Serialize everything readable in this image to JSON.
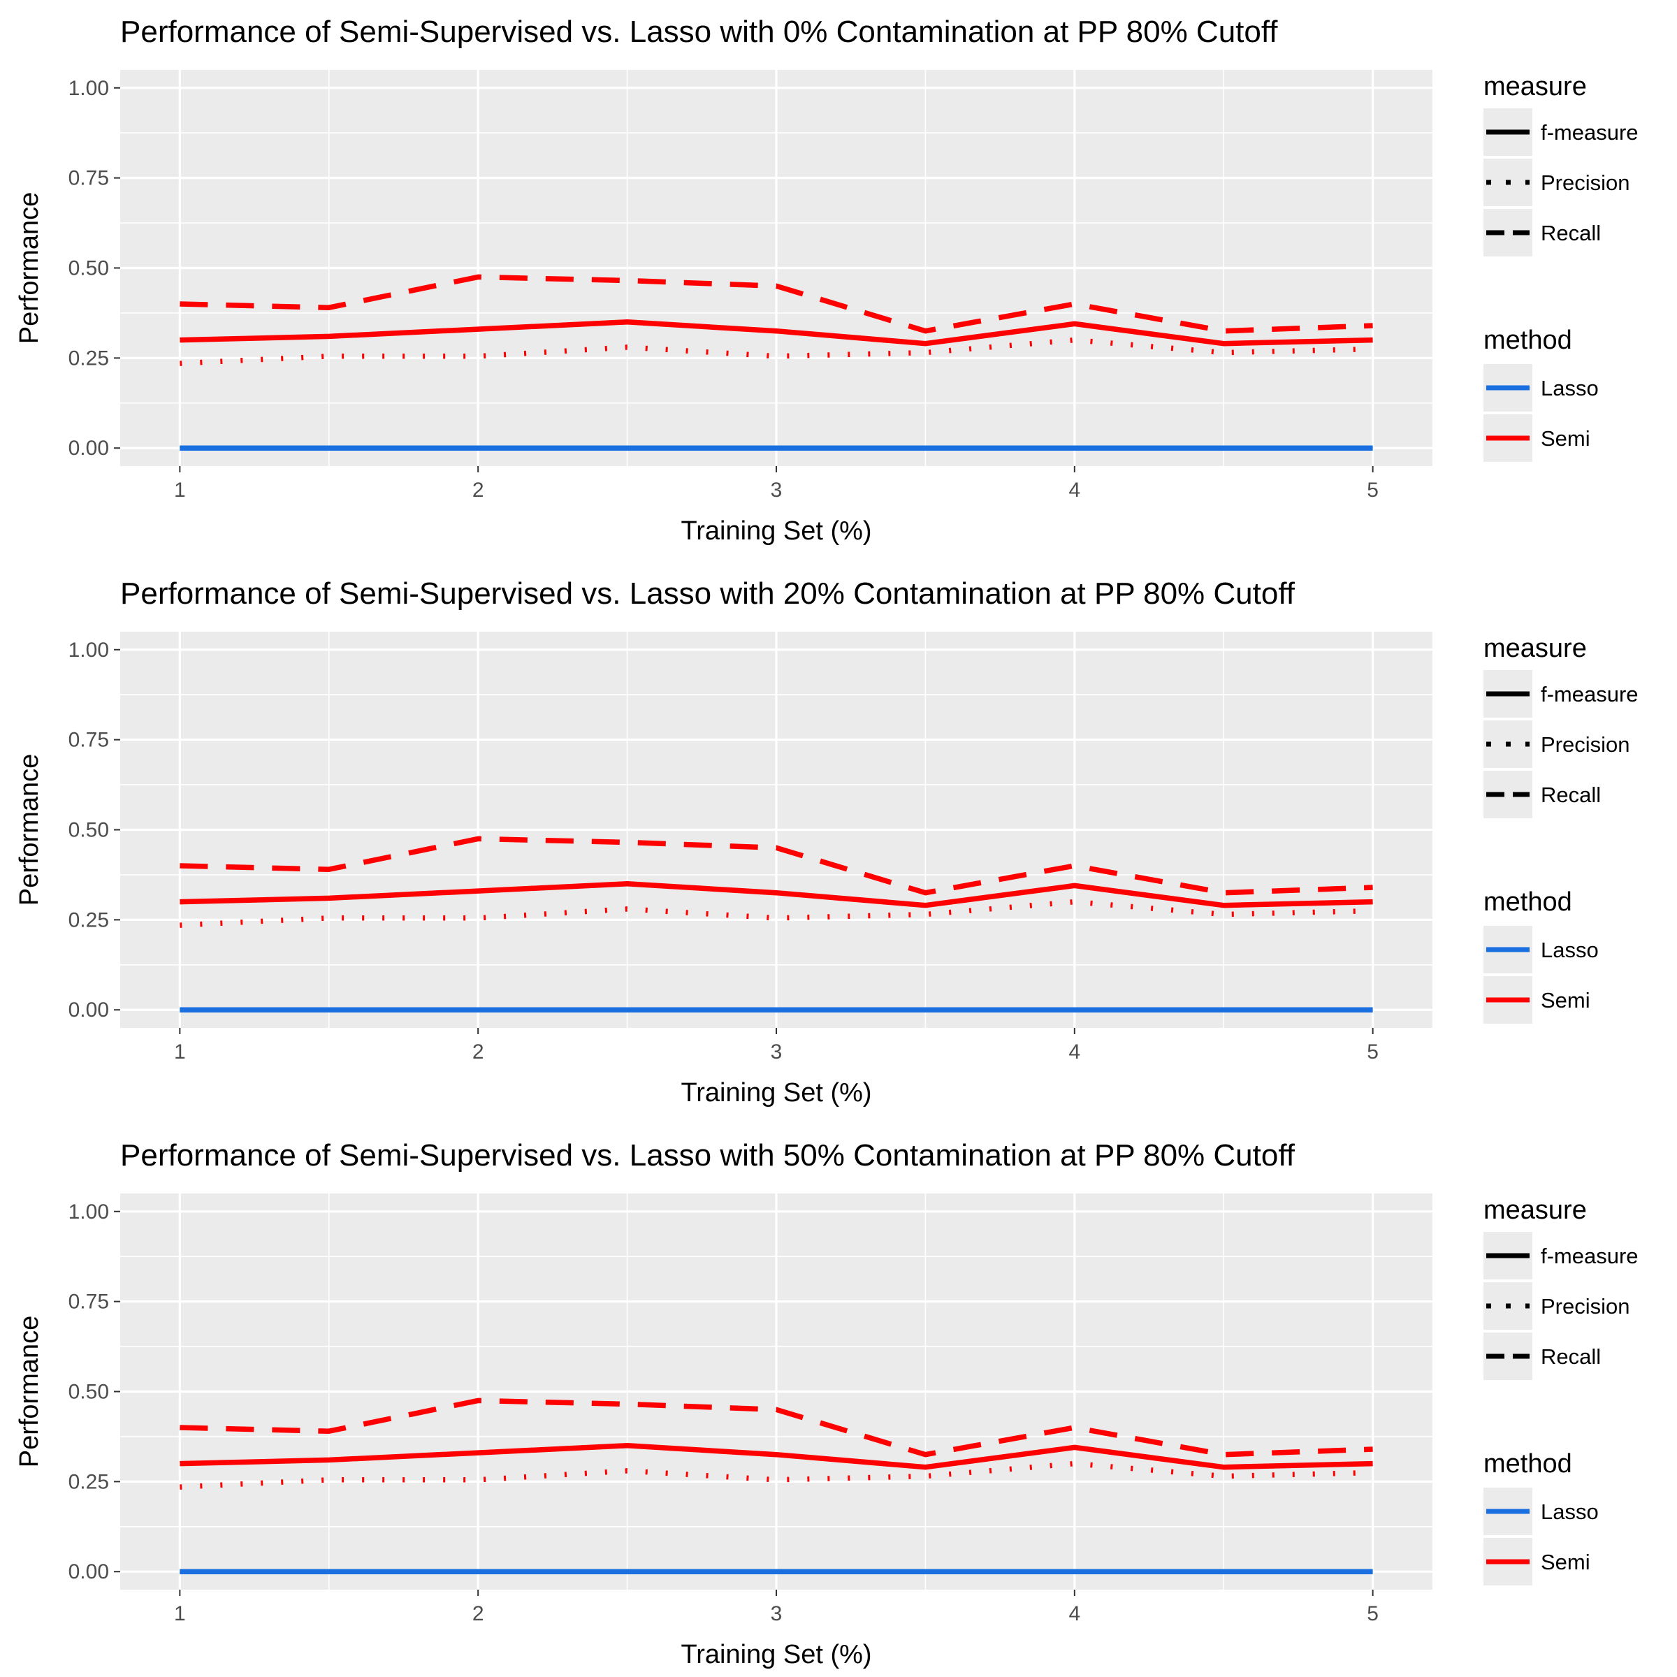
{
  "chart_data": [
    {
      "type": "line",
      "title": "Performance of Semi-Supervised vs. Lasso with 0% Contamination at PP 80% Cutoff",
      "xlabel": "Training Set (%)",
      "ylabel": "Performance",
      "xlim": [
        0.8,
        5.2
      ],
      "ylim": [
        -0.05,
        1.05
      ],
      "x_ticks": [
        "1",
        "2",
        "3",
        "4",
        "5"
      ],
      "y_ticks": [
        "0.00",
        "0.25",
        "0.50",
        "0.75",
        "1.00"
      ],
      "grid": true,
      "legend_position": "right",
      "x": [
        1,
        1.5,
        2,
        2.5,
        3,
        3.5,
        4,
        4.5,
        5
      ],
      "legend": {
        "measure": {
          "title": "measure",
          "items": [
            "f-measure",
            "Precision",
            "Recall"
          ]
        },
        "method": {
          "title": "method",
          "items": [
            "Lasso",
            "Semi"
          ]
        }
      },
      "series": [
        {
          "method": "Semi",
          "measure": "f-measure",
          "color": "#ff0000",
          "values": [
            0.3,
            0.31,
            0.33,
            0.35,
            0.325,
            0.29,
            0.345,
            0.29,
            0.3
          ]
        },
        {
          "method": "Semi",
          "measure": "Precision",
          "color": "#ff0000",
          "values": [
            0.235,
            0.255,
            0.255,
            0.28,
            0.255,
            0.265,
            0.3,
            0.265,
            0.275
          ]
        },
        {
          "method": "Semi",
          "measure": "Recall",
          "color": "#ff0000",
          "values": [
            0.4,
            0.39,
            0.475,
            0.465,
            0.45,
            0.325,
            0.4,
            0.325,
            0.34
          ]
        },
        {
          "method": "Lasso",
          "measure": "f-measure",
          "color": "#1a6fe0",
          "values": [
            0,
            0,
            0,
            0,
            0,
            0,
            0,
            0,
            0
          ]
        },
        {
          "method": "Lasso",
          "measure": "Precision",
          "color": "#1a6fe0",
          "values": [
            0,
            0,
            0,
            0,
            0,
            0,
            0,
            0,
            0
          ]
        },
        {
          "method": "Lasso",
          "measure": "Recall",
          "color": "#1a6fe0",
          "values": [
            0,
            0,
            0,
            0,
            0,
            0,
            0,
            0,
            0
          ]
        }
      ]
    },
    {
      "type": "line",
      "title": "Performance of Semi-Supervised vs. Lasso with 20% Contamination at PP 80% Cutoff",
      "xlabel": "Training Set (%)",
      "ylabel": "Performance",
      "xlim": [
        0.8,
        5.2
      ],
      "ylim": [
        -0.05,
        1.05
      ],
      "x_ticks": [
        "1",
        "2",
        "3",
        "4",
        "5"
      ],
      "y_ticks": [
        "0.00",
        "0.25",
        "0.50",
        "0.75",
        "1.00"
      ],
      "grid": true,
      "legend_position": "right",
      "x": [
        1,
        1.5,
        2,
        2.5,
        3,
        3.5,
        4,
        4.5,
        5
      ],
      "legend": {
        "measure": {
          "title": "measure",
          "items": [
            "f-measure",
            "Precision",
            "Recall"
          ]
        },
        "method": {
          "title": "method",
          "items": [
            "Lasso",
            "Semi"
          ]
        }
      },
      "series": [
        {
          "method": "Semi",
          "measure": "f-measure",
          "color": "#ff0000",
          "values": [
            0.3,
            0.31,
            0.33,
            0.35,
            0.325,
            0.29,
            0.345,
            0.29,
            0.3
          ]
        },
        {
          "method": "Semi",
          "measure": "Precision",
          "color": "#ff0000",
          "values": [
            0.235,
            0.255,
            0.255,
            0.28,
            0.255,
            0.265,
            0.3,
            0.265,
            0.275
          ]
        },
        {
          "method": "Semi",
          "measure": "Recall",
          "color": "#ff0000",
          "values": [
            0.4,
            0.39,
            0.475,
            0.465,
            0.45,
            0.325,
            0.4,
            0.325,
            0.34
          ]
        },
        {
          "method": "Lasso",
          "measure": "f-measure",
          "color": "#1a6fe0",
          "values": [
            0,
            0,
            0,
            0,
            0,
            0,
            0,
            0,
            0
          ]
        },
        {
          "method": "Lasso",
          "measure": "Precision",
          "color": "#1a6fe0",
          "values": [
            0,
            0,
            0,
            0,
            0,
            0,
            0,
            0,
            0
          ]
        },
        {
          "method": "Lasso",
          "measure": "Recall",
          "color": "#1a6fe0",
          "values": [
            0,
            0,
            0,
            0,
            0,
            0,
            0,
            0,
            0
          ]
        }
      ]
    },
    {
      "type": "line",
      "title": "Performance of Semi-Supervised vs. Lasso with 50% Contamination at PP 80% Cutoff",
      "xlabel": "Training Set (%)",
      "ylabel": "Performance",
      "xlim": [
        0.8,
        5.2
      ],
      "ylim": [
        -0.05,
        1.05
      ],
      "x_ticks": [
        "1",
        "2",
        "3",
        "4",
        "5"
      ],
      "y_ticks": [
        "0.00",
        "0.25",
        "0.50",
        "0.75",
        "1.00"
      ],
      "grid": true,
      "legend_position": "right",
      "x": [
        1,
        1.5,
        2,
        2.5,
        3,
        3.5,
        4,
        4.5,
        5
      ],
      "legend": {
        "measure": {
          "title": "measure",
          "items": [
            "f-measure",
            "Precision",
            "Recall"
          ]
        },
        "method": {
          "title": "method",
          "items": [
            "Lasso",
            "Semi"
          ]
        }
      },
      "series": [
        {
          "method": "Semi",
          "measure": "f-measure",
          "color": "#ff0000",
          "values": [
            0.3,
            0.31,
            0.33,
            0.35,
            0.325,
            0.29,
            0.345,
            0.29,
            0.3
          ]
        },
        {
          "method": "Semi",
          "measure": "Precision",
          "color": "#ff0000",
          "values": [
            0.235,
            0.255,
            0.255,
            0.28,
            0.255,
            0.265,
            0.3,
            0.265,
            0.275
          ]
        },
        {
          "method": "Semi",
          "measure": "Recall",
          "color": "#ff0000",
          "values": [
            0.4,
            0.39,
            0.475,
            0.465,
            0.45,
            0.325,
            0.4,
            0.325,
            0.34
          ]
        },
        {
          "method": "Lasso",
          "measure": "f-measure",
          "color": "#1a6fe0",
          "values": [
            0,
            0,
            0,
            0,
            0,
            0,
            0,
            0,
            0
          ]
        },
        {
          "method": "Lasso",
          "measure": "Precision",
          "color": "#1a6fe0",
          "values": [
            0,
            0,
            0,
            0,
            0,
            0,
            0,
            0,
            0
          ]
        },
        {
          "method": "Lasso",
          "measure": "Recall",
          "color": "#1a6fe0",
          "values": [
            0,
            0,
            0,
            0,
            0,
            0,
            0,
            0,
            0
          ]
        }
      ]
    }
  ]
}
